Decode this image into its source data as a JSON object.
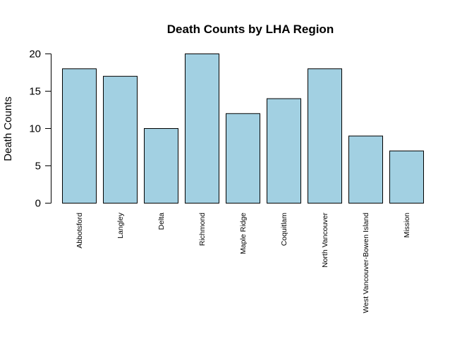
{
  "chart_data": {
    "type": "bar",
    "title": "Death Counts by LHA Region",
    "xlabel": "",
    "ylabel": "Death Counts",
    "categories": [
      "Abbotsford",
      "Langley",
      "Delta",
      "Richmond",
      "Maple Ridge",
      "Coquitlam",
      "North Vancouver",
      "West Vancouver-Bowen Island",
      "Mission"
    ],
    "values": [
      18,
      17,
      10,
      20,
      12,
      14,
      18,
      9,
      7
    ],
    "ylim": [
      0,
      20
    ],
    "yticks": [
      0,
      5,
      10,
      15,
      20
    ],
    "bar_color": "#a2d0e2",
    "grid": false,
    "legend": "none",
    "x_tick_label_orientation": "vertical"
  }
}
